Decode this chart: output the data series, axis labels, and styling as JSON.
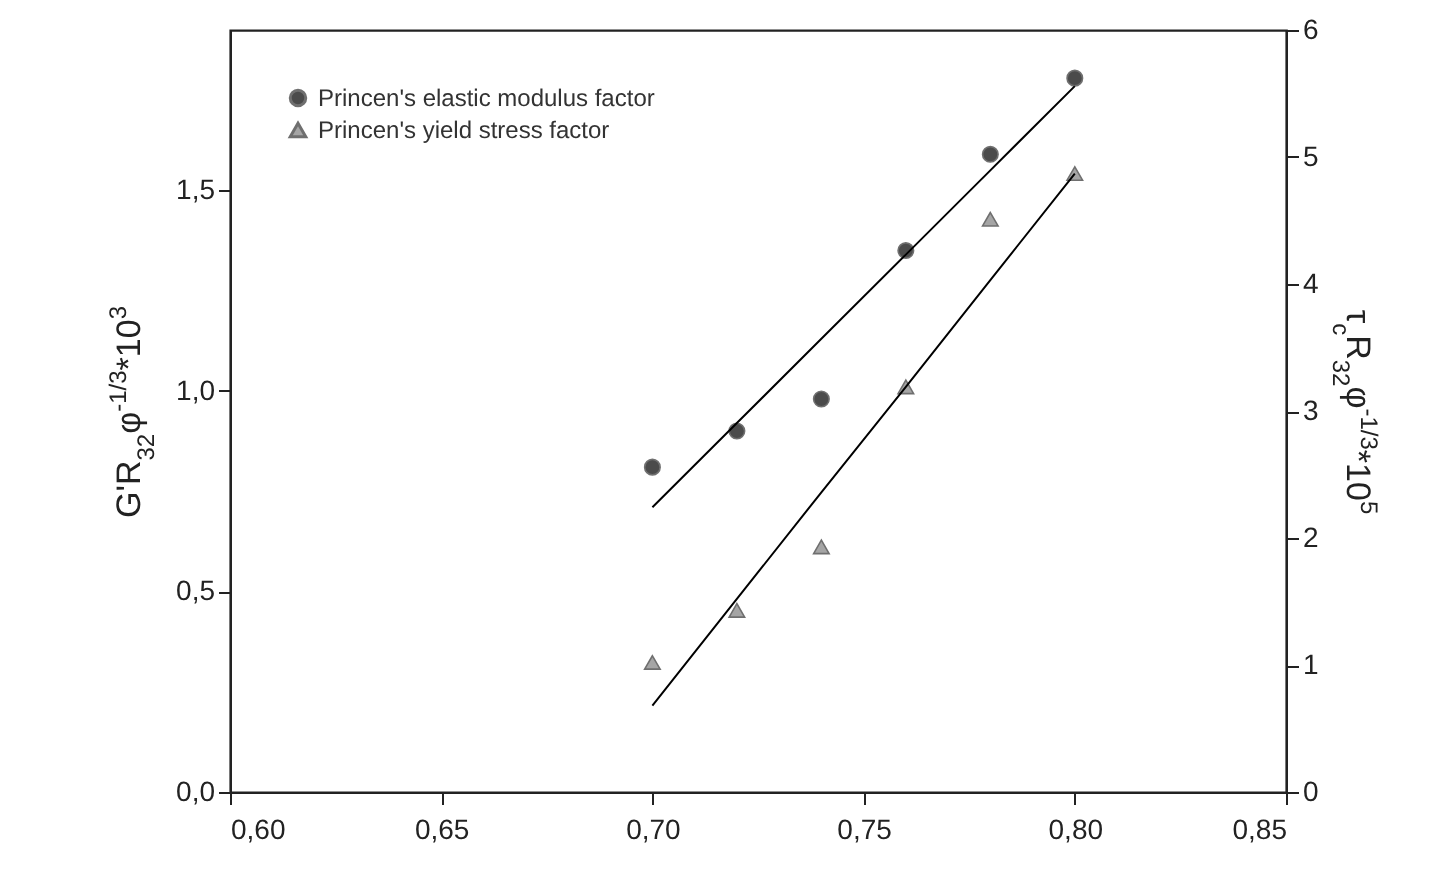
{
  "chart_data": {
    "type": "scatter",
    "xlim": [
      0.6,
      0.85
    ],
    "xticks": [
      {
        "value": 0.6,
        "label": "0,60"
      },
      {
        "value": 0.65,
        "label": "0,65"
      },
      {
        "value": 0.7,
        "label": "0,70"
      },
      {
        "value": 0.75,
        "label": "0,75"
      },
      {
        "value": 0.8,
        "label": "0,80"
      },
      {
        "value": 0.85,
        "label": "0,85"
      }
    ],
    "ylim": [
      0,
      1.9
    ],
    "yticks": [
      {
        "value": 0,
        "label": "0,0"
      },
      {
        "value": 0.5,
        "label": "0,5"
      },
      {
        "value": 1,
        "label": "1,0"
      },
      {
        "value": 1.5,
        "label": "1,5"
      }
    ],
    "y2lim": [
      0,
      6
    ],
    "y2ticks": [
      0,
      1,
      2,
      3,
      4,
      5,
      6
    ],
    "ylabel": "G'R$_{32}$φ$^{-1/3}$*10$^{3}$",
    "y2label": "τ$_{c}$R$_{32}$φ$^{-1/3}$*10$^{5}$",
    "x": [
      0.7,
      0.72,
      0.74,
      0.76,
      0.78,
      0.8
    ],
    "legend": "top left",
    "grid": false,
    "series": [
      {
        "name": "Princen's elastic modulus factor",
        "marker": "circle",
        "color": "#000000",
        "values": [
          0.81,
          0.9,
          0.98,
          1.35,
          1.59,
          1.78
        ]
      },
      {
        "name": "Princen's yield stress factor",
        "marker": "triangle",
        "color": "#808080",
        "axis": "y2",
        "values": [
          1.02,
          1.43,
          1.93,
          3.19,
          4.51,
          4.87
        ]
      },
      {
        "type": "line",
        "color": "#000000",
        "values": [
          0.71,
          0.92,
          1.13,
          1.34,
          1.55,
          1.76
        ]
      },
      {
        "type": "line",
        "color": "#000000",
        "axis": "y2",
        "values": [
          0.68,
          1.52,
          2.36,
          3.19,
          4.03,
          4.87
        ]
      }
    ]
  }
}
